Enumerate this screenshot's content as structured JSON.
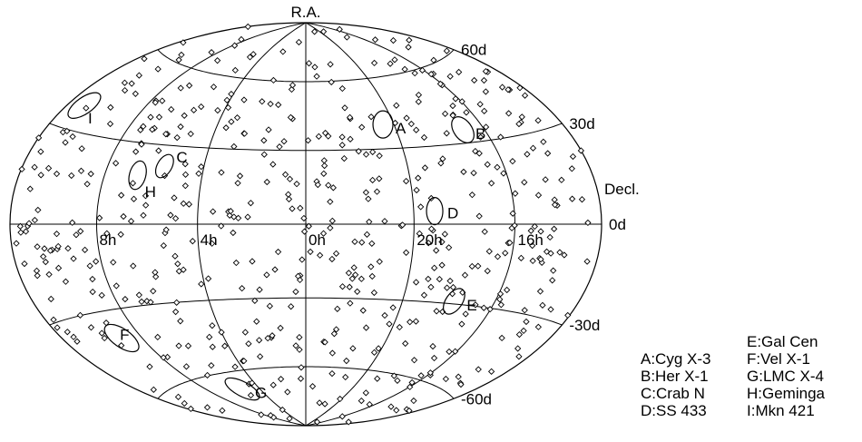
{
  "chart_data": {
    "type": "scatter",
    "projection": "hammer-aitoff",
    "axis_title_top": "R.A.",
    "axis_title_right": "Decl.",
    "ra_tick_labels": [
      "8h",
      "4h",
      "0h",
      "20h",
      "16h"
    ],
    "dec_tick_labels": [
      "60d",
      "30d",
      "0d",
      "-30d",
      "-60d"
    ],
    "ra_gridlines_hours": [
      8,
      4,
      0,
      20,
      16
    ],
    "dec_gridlines_deg": [
      60,
      30,
      0,
      -30,
      -60
    ],
    "marker": "diamond",
    "sources": [
      {
        "label": "A",
        "ra_h": 20.5,
        "dec": 40
      },
      {
        "label": "B",
        "ra_h": 17.0,
        "dec": 35
      },
      {
        "label": "C",
        "ra_h": 5.6,
        "dec": 22
      },
      {
        "label": "D",
        "ra_h": 19.2,
        "dec": 5
      },
      {
        "label": "E",
        "ra_h": 17.8,
        "dec": -29
      },
      {
        "label": "F",
        "ra_h": 9.0,
        "dec": -40
      },
      {
        "label": "G",
        "ra_h": 5.4,
        "dec": -68
      },
      {
        "label": "H",
        "ra_h": 6.6,
        "dec": 18
      },
      {
        "label": "I",
        "ra_h": 11.1,
        "dec": 38
      }
    ],
    "legend": [
      [
        "",
        "E:Gal Cen"
      ],
      [
        "A:Cyg X-3",
        "F:Vel X-1"
      ],
      [
        "B:Her X-1",
        "G:LMC X-4"
      ],
      [
        "C:Crab N",
        "H:Geminga"
      ],
      [
        "D:SS 433",
        "I:Mkn 421"
      ]
    ]
  }
}
